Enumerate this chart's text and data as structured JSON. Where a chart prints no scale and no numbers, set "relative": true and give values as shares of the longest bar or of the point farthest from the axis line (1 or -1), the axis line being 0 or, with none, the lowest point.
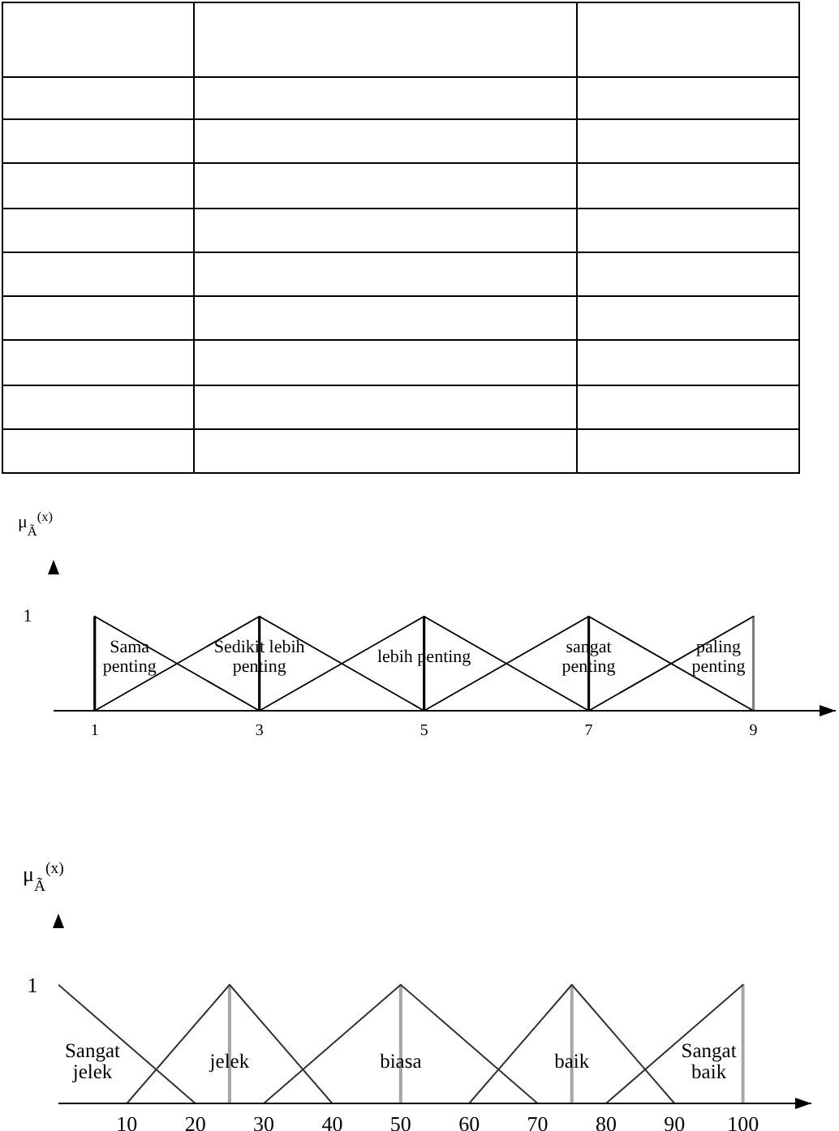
{
  "chart_data": [
    {
      "type": "line",
      "ylabel": "μ$_{Ã}$$^{(x)}$",
      "relative": true,
      "xlim": [
        0.5,
        10
      ],
      "xticks": [
        1,
        3,
        5,
        7,
        9
      ],
      "marker": "none",
      "annotations": [
        "1"
      ],
      "series": [
        {
          "name": "Sama\npenting",
          "color": "#000000",
          "x": [
            1,
            3
          ],
          "values": [
            1,
            0
          ]
        },
        {
          "name": "Sedikit lebih\npenting",
          "color": "#000000",
          "x": [
            1,
            3,
            5
          ],
          "values": [
            0,
            1,
            0
          ]
        },
        {
          "name": "lebih penting",
          "color": "#000000",
          "x": [
            3,
            5,
            7
          ],
          "values": [
            0,
            1,
            0
          ]
        },
        {
          "name": "sangat\npenting",
          "color": "#000000",
          "x": [
            5,
            7,
            9
          ],
          "values": [
            0,
            1,
            0
          ]
        },
        {
          "name": "paling\npenting",
          "color": "#000000",
          "x": [
            7,
            9
          ],
          "values": [
            0,
            1
          ]
        }
      ],
      "ref_lines": [
        {
          "axis": "x",
          "value": 1,
          "color": "#000000"
        },
        {
          "axis": "x",
          "value": 3,
          "color": "#000000"
        },
        {
          "axis": "x",
          "value": 5,
          "color": "#000000"
        },
        {
          "axis": "x",
          "value": 7,
          "color": "#000000"
        },
        {
          "axis": "x",
          "value": 9,
          "color": "#808080"
        }
      ]
    },
    {
      "type": "line",
      "ylabel": "μ$_{Ã}$$^{(x)}$",
      "relative": true,
      "xlim": [
        0,
        110
      ],
      "xticks": [
        10,
        20,
        30,
        40,
        50,
        60,
        70,
        80,
        90,
        100
      ],
      "marker": "none",
      "annotations": [
        "1"
      ],
      "series": [
        {
          "name": "Sangat\njelek",
          "color": "#333333",
          "x": [
            0,
            20
          ],
          "values": [
            1,
            0
          ]
        },
        {
          "name": "jelek",
          "color": "#333333",
          "x": [
            10,
            25,
            40
          ],
          "values": [
            0,
            1,
            0
          ]
        },
        {
          "name": "biasa",
          "color": "#333333",
          "x": [
            30,
            50,
            70
          ],
          "values": [
            0,
            1,
            0
          ]
        },
        {
          "name": "baik",
          "color": "#333333",
          "x": [
            60,
            75,
            90
          ],
          "values": [
            0,
            1,
            0
          ]
        },
        {
          "name": "Sangat\nbaik",
          "color": "#333333",
          "x": [
            80,
            100
          ],
          "values": [
            0,
            1
          ]
        }
      ],
      "ref_lines": [
        {
          "axis": "x",
          "value": 25,
          "color": "#a6a6a6"
        },
        {
          "axis": "x",
          "value": 50,
          "color": "#a6a6a6"
        },
        {
          "axis": "x",
          "value": 75,
          "color": "#a6a6a6"
        },
        {
          "axis": "x",
          "value": 100,
          "color": "#a6a6a6"
        }
      ]
    }
  ]
}
